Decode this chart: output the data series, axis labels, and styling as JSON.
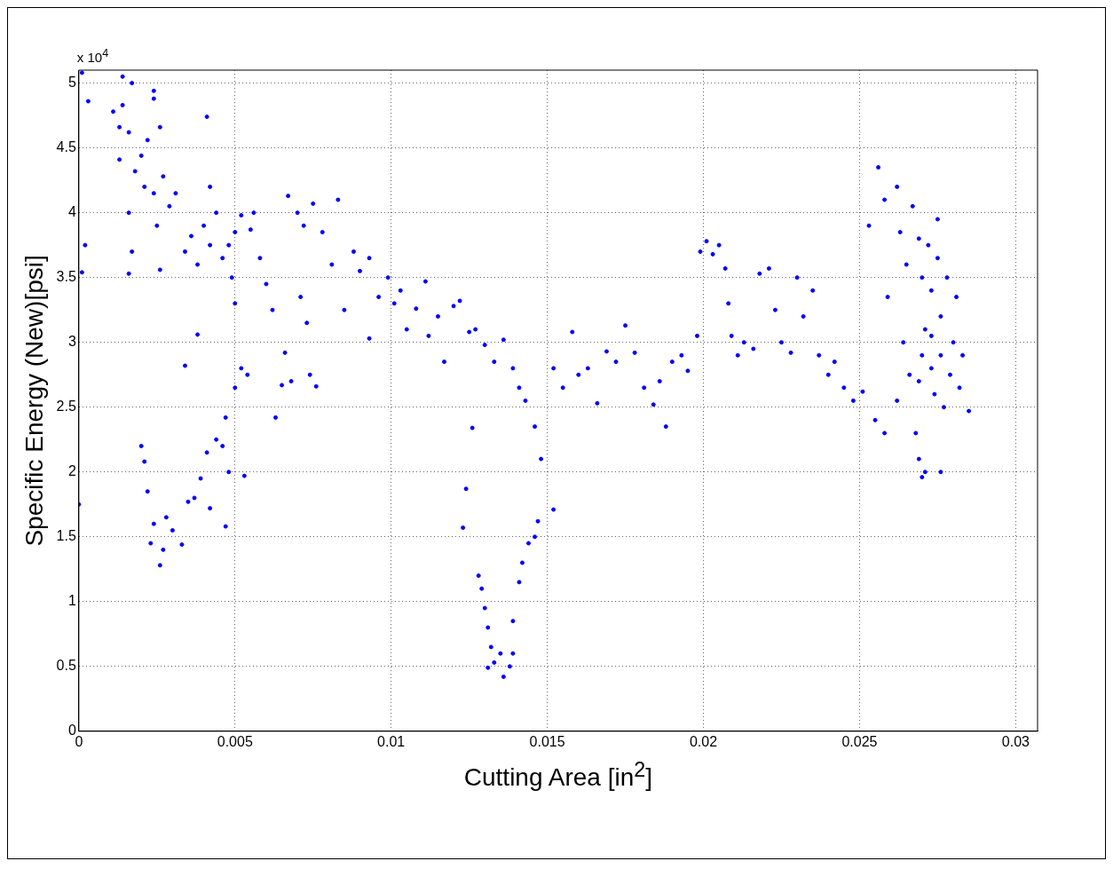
{
  "chart_data": {
    "type": "scatter",
    "xlabel": "Cutting Area [in$^{2}$]",
    "ylabel": "Specific Energy (New)[psi]",
    "annotations": [
      "x 10$^{4}$"
    ],
    "xlim": [
      0,
      0.0307
    ],
    "xticks": [
      0,
      0.005,
      0.01,
      0.015,
      0.02,
      0.025,
      0.03
    ],
    "ylim": [
      0,
      5.1
    ],
    "yticks": [
      0,
      0.5,
      1,
      1.5,
      2,
      2.5,
      3,
      3.5,
      4,
      4.5,
      5
    ],
    "grid": true,
    "marker": "circle",
    "legend": false,
    "series": [
      {
        "color": "#0000ff",
        "x": [
          0.0001,
          0.0003,
          0.0002,
          0.0001,
          0.0,
          0.0011,
          0.0014,
          0.0017,
          0.0014,
          0.0013,
          0.0016,
          0.0013,
          0.0018,
          0.002,
          0.0022,
          0.0024,
          0.0024,
          0.0026,
          0.0016,
          0.0017,
          0.0016,
          0.0021,
          0.0024,
          0.0027,
          0.0029,
          0.0025,
          0.0026,
          0.0031,
          0.0034,
          0.0036,
          0.0038,
          0.004,
          0.0042,
          0.0042,
          0.0041,
          0.0044,
          0.0046,
          0.0048,
          0.005,
          0.0052,
          0.0055,
          0.0056,
          0.0049,
          0.005,
          0.002,
          0.0021,
          0.0022,
          0.0024,
          0.0023,
          0.0026,
          0.0027,
          0.0028,
          0.003,
          0.0033,
          0.0035,
          0.0037,
          0.0034,
          0.0038,
          0.0039,
          0.0041,
          0.0042,
          0.0044,
          0.0046,
          0.0048,
          0.0047,
          0.0047,
          0.005,
          0.0052,
          0.0053,
          0.0054,
          0.0058,
          0.006,
          0.0062,
          0.0063,
          0.0065,
          0.0066,
          0.0068,
          0.0067,
          0.007,
          0.0072,
          0.0071,
          0.0073,
          0.0074,
          0.0076,
          0.0075,
          0.0078,
          0.0081,
          0.0083,
          0.0085,
          0.0088,
          0.009,
          0.0093,
          0.0093,
          0.0096,
          0.0099,
          0.0101,
          0.0103,
          0.0105,
          0.0108,
          0.0111,
          0.0112,
          0.0115,
          0.0117,
          0.012,
          0.0122,
          0.0125,
          0.0127,
          0.013,
          0.0133,
          0.0136,
          0.0139,
          0.0141,
          0.0143,
          0.0146,
          0.0148,
          0.0124,
          0.0123,
          0.0126,
          0.0128,
          0.0129,
          0.013,
          0.0131,
          0.0132,
          0.0133,
          0.0131,
          0.0135,
          0.0136,
          0.0138,
          0.0139,
          0.0139,
          0.0141,
          0.0142,
          0.0144,
          0.0146,
          0.0147,
          0.0152,
          0.0152,
          0.0155,
          0.0158,
          0.016,
          0.0163,
          0.0166,
          0.0169,
          0.0172,
          0.0175,
          0.0178,
          0.0181,
          0.0184,
          0.0186,
          0.0188,
          0.019,
          0.0193,
          0.0195,
          0.0198,
          0.0199,
          0.0201,
          0.0203,
          0.0205,
          0.0207,
          0.0208,
          0.0209,
          0.0211,
          0.0213,
          0.0216,
          0.0218,
          0.0221,
          0.0223,
          0.0225,
          0.0228,
          0.023,
          0.0232,
          0.0235,
          0.0237,
          0.024,
          0.0242,
          0.0245,
          0.0248,
          0.0251,
          0.0253,
          0.0256,
          0.0258,
          0.0262,
          0.0259,
          0.0255,
          0.0258,
          0.0262,
          0.0263,
          0.0265,
          0.0267,
          0.0269,
          0.027,
          0.0271,
          0.027,
          0.0269,
          0.0268,
          0.0269,
          0.027,
          0.0271,
          0.0272,
          0.0273,
          0.0273,
          0.0273,
          0.0274,
          0.0275,
          0.0275,
          0.0276,
          0.0276,
          0.0277,
          0.0276,
          0.0278,
          0.0279,
          0.028,
          0.0281,
          0.0282,
          0.0283,
          0.0285,
          0.0264,
          0.0266
        ],
        "values": [
          5.08,
          4.86,
          3.75,
          3.54,
          1.75,
          4.78,
          5.05,
          5.0,
          4.83,
          4.66,
          4.62,
          4.41,
          4.32,
          4.44,
          4.56,
          4.94,
          4.88,
          4.66,
          4.0,
          3.7,
          3.53,
          4.2,
          4.15,
          4.28,
          4.05,
          3.9,
          3.56,
          4.15,
          3.7,
          3.82,
          3.6,
          3.9,
          3.75,
          4.2,
          4.74,
          4.0,
          3.65,
          3.75,
          3.85,
          3.98,
          3.87,
          4.0,
          3.5,
          3.3,
          2.2,
          2.08,
          1.85,
          1.6,
          1.45,
          1.28,
          1.4,
          1.65,
          1.55,
          1.44,
          1.77,
          1.8,
          2.82,
          3.06,
          1.95,
          2.15,
          1.72,
          2.25,
          2.2,
          2.0,
          1.58,
          2.42,
          2.65,
          2.8,
          1.97,
          2.75,
          3.65,
          3.45,
          3.25,
          2.42,
          2.67,
          2.92,
          2.7,
          4.13,
          4.0,
          3.9,
          3.35,
          3.15,
          2.75,
          2.66,
          4.07,
          3.85,
          3.6,
          4.1,
          3.25,
          3.7,
          3.55,
          3.65,
          3.03,
          3.35,
          3.5,
          3.3,
          3.4,
          3.1,
          3.26,
          3.47,
          3.05,
          3.2,
          2.85,
          3.28,
          3.32,
          3.08,
          3.1,
          2.98,
          2.85,
          3.02,
          2.8,
          2.65,
          2.55,
          2.35,
          2.1,
          1.87,
          1.57,
          2.34,
          1.2,
          1.1,
          0.95,
          0.8,
          0.65,
          0.53,
          0.49,
          0.6,
          0.42,
          0.5,
          0.6,
          0.85,
          1.15,
          1.3,
          1.45,
          1.5,
          1.62,
          1.71,
          2.8,
          2.65,
          3.08,
          2.75,
          2.8,
          2.53,
          2.93,
          2.85,
          3.13,
          2.92,
          2.65,
          2.52,
          2.7,
          2.35,
          2.85,
          2.9,
          2.78,
          3.05,
          3.7,
          3.78,
          3.68,
          3.75,
          3.57,
          3.3,
          3.05,
          2.9,
          3.0,
          2.95,
          3.53,
          3.57,
          3.25,
          3.0,
          2.92,
          3.5,
          3.2,
          3.4,
          2.9,
          2.75,
          2.85,
          2.65,
          2.55,
          2.62,
          3.9,
          4.35,
          4.1,
          4.2,
          3.35,
          2.4,
          2.3,
          2.55,
          3.85,
          3.6,
          4.05,
          3.8,
          3.5,
          3.1,
          2.9,
          2.7,
          2.3,
          2.1,
          1.96,
          2.0,
          3.75,
          3.4,
          3.05,
          2.8,
          2.6,
          3.95,
          3.65,
          3.2,
          2.9,
          2.5,
          2.0,
          3.5,
          2.75,
          3.0,
          3.35,
          2.65,
          2.9,
          2.47,
          3.0,
          2.75
        ]
      }
    ]
  }
}
